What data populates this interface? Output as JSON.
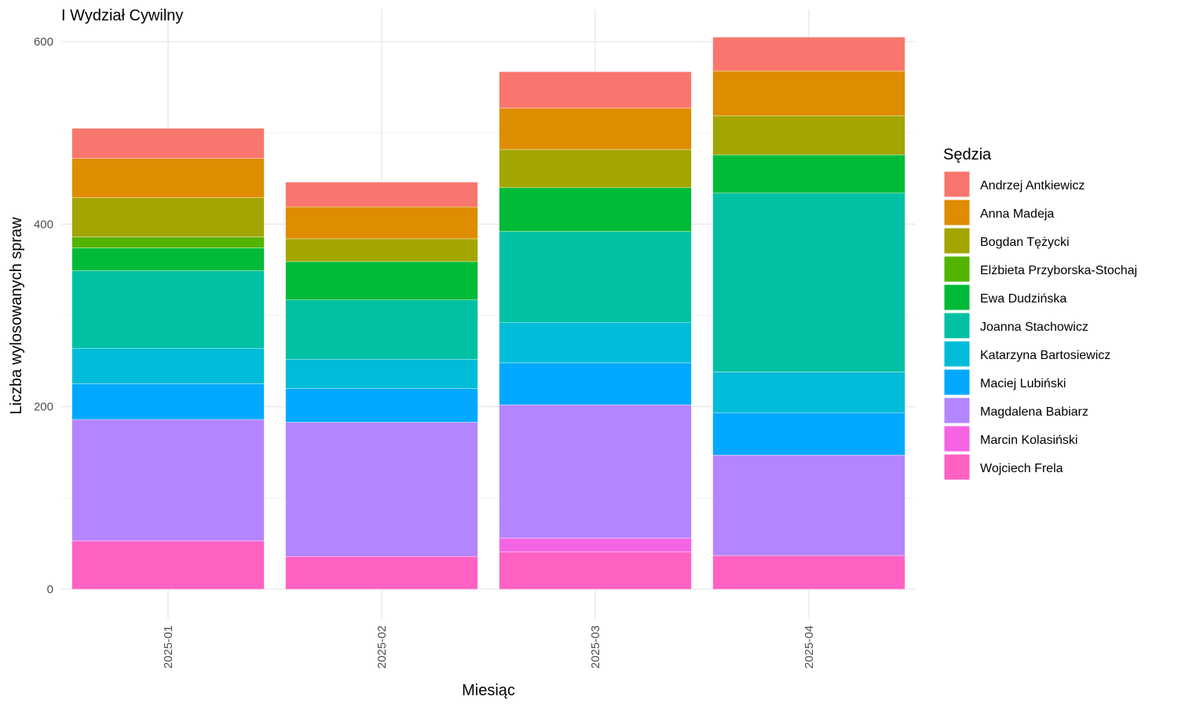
{
  "chart_data": {
    "type": "bar",
    "stacked": true,
    "title": "I Wydział Cywilny",
    "xlabel": "Miesiąc",
    "ylabel": "Liczba wylosowanych spraw",
    "categories": [
      "2025-01",
      "2025-02",
      "2025-03",
      "2025-04"
    ],
    "ylim": [
      0,
      620
    ],
    "yticks": [
      0,
      200,
      400,
      600
    ],
    "grid": true,
    "legend": {
      "title": "Sędzia",
      "position": "right"
    },
    "series": [
      {
        "name": "Wojciech Frela",
        "color": "#FF61C3",
        "values": [
          53,
          36,
          41,
          37
        ]
      },
      {
        "name": "Marcin Kolasiński",
        "color": "#F564E3",
        "values": [
          0,
          0,
          15,
          0
        ]
      },
      {
        "name": "Magdalena Babiarz",
        "color": "#B385FF",
        "values": [
          133,
          147,
          146,
          110
        ]
      },
      {
        "name": "Maciej Lubiński",
        "color": "#00A9FF",
        "values": [
          39,
          37,
          46,
          46
        ]
      },
      {
        "name": "Katarzyna Bartosiewicz",
        "color": "#00BCD8",
        "values": [
          39,
          32,
          44,
          45
        ]
      },
      {
        "name": "Joanna Stachowicz",
        "color": "#00C1A3",
        "values": [
          85,
          65,
          100,
          196
        ]
      },
      {
        "name": "Ewa Dudzińska",
        "color": "#00BA38",
        "values": [
          25,
          42,
          48,
          42
        ]
      },
      {
        "name": "Elżbieta Przyborska-Stochaj",
        "color": "#53B400",
        "values": [
          12,
          0,
          0,
          0
        ]
      },
      {
        "name": "Bogdan Tężycki",
        "color": "#A3A500",
        "values": [
          43,
          25,
          42,
          43
        ]
      },
      {
        "name": "Anna Madeja",
        "color": "#DE8C00",
        "values": [
          43,
          35,
          45,
          49
        ]
      },
      {
        "name": "Andrzej Antkiewicz",
        "color": "#F8766D",
        "values": [
          33,
          27,
          40,
          37
        ]
      }
    ],
    "legend_order": [
      "Andrzej Antkiewicz",
      "Anna Madeja",
      "Bogdan Tężycki",
      "Elżbieta Przyborska-Stochaj",
      "Ewa Dudzińska",
      "Joanna Stachowicz",
      "Katarzyna Bartosiewicz",
      "Maciej Lubiński",
      "Magdalena Babiarz",
      "Marcin Kolasiński",
      "Wojciech Frela"
    ]
  }
}
